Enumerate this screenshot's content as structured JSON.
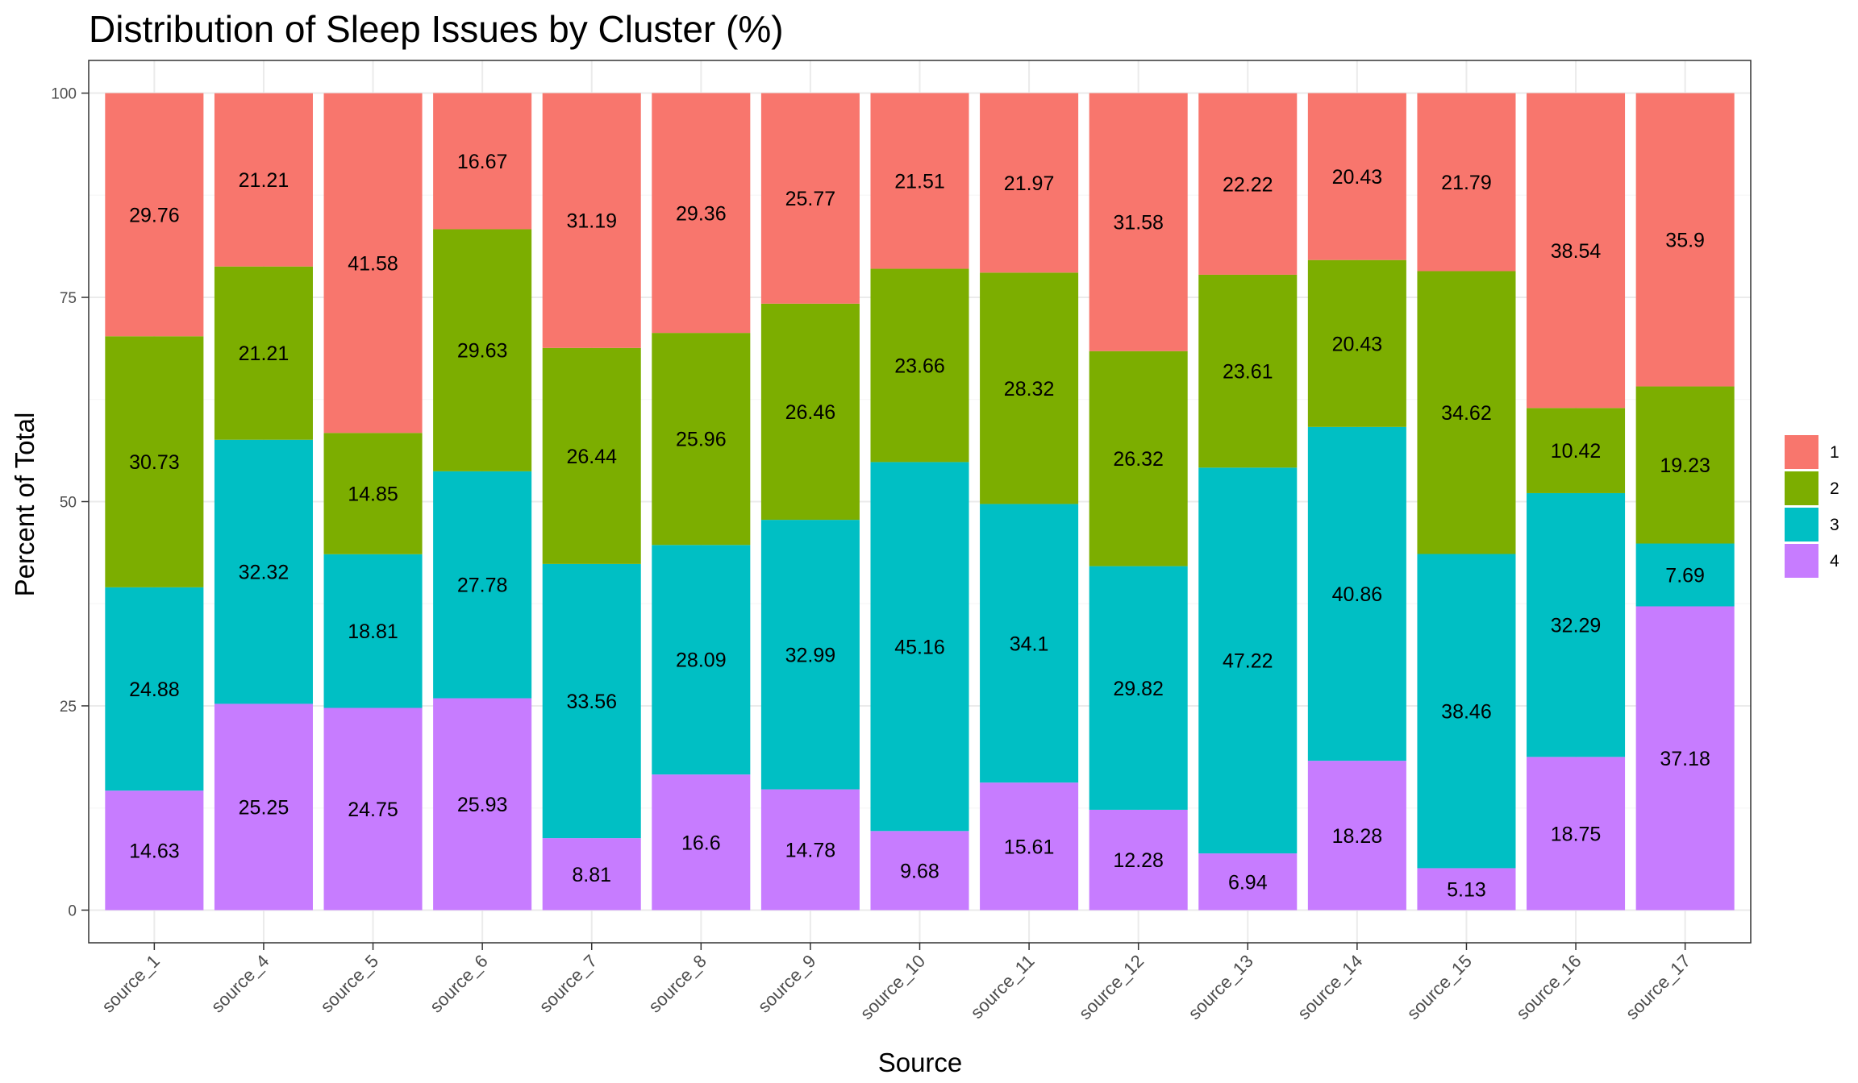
{
  "chart_data": {
    "type": "bar",
    "stacked": true,
    "title": "Distribution of Sleep Issues by Cluster (%)",
    "xlabel": "Source",
    "ylabel": "Percent of Total",
    "ylim": [
      -4,
      104
    ],
    "yticks": [
      0,
      25,
      50,
      75,
      100
    ],
    "grid": true,
    "legend_position": "right",
    "categories": [
      "source_1",
      "source_4",
      "source_5",
      "source_6",
      "source_7",
      "source_8",
      "source_9",
      "source_10",
      "source_11",
      "source_12",
      "source_13",
      "source_14",
      "source_15",
      "source_16",
      "source_17"
    ],
    "stack_order_top_to_bottom": [
      "1",
      "2",
      "3",
      "4"
    ],
    "series": [
      {
        "name": "1",
        "color": "#F8766D",
        "values": [
          29.76,
          21.21,
          41.58,
          16.67,
          31.19,
          29.36,
          25.77,
          21.51,
          21.97,
          31.58,
          22.22,
          20.43,
          21.79,
          38.54,
          35.9
        ]
      },
      {
        "name": "2",
        "color": "#7CAE00",
        "values": [
          30.73,
          21.21,
          14.85,
          29.63,
          26.44,
          25.96,
          26.46,
          23.66,
          28.32,
          26.32,
          23.61,
          20.43,
          34.62,
          10.42,
          19.23
        ]
      },
      {
        "name": "3",
        "color": "#00BFC4",
        "values": [
          24.88,
          32.32,
          18.81,
          27.78,
          33.56,
          28.09,
          32.99,
          45.16,
          34.1,
          29.82,
          47.22,
          40.86,
          38.46,
          32.29,
          7.69
        ]
      },
      {
        "name": "4",
        "color": "#C77CFF",
        "values": [
          14.63,
          25.25,
          24.75,
          25.93,
          8.81,
          16.6,
          14.78,
          9.68,
          15.61,
          12.28,
          6.94,
          18.28,
          5.13,
          18.75,
          37.18
        ]
      }
    ]
  }
}
